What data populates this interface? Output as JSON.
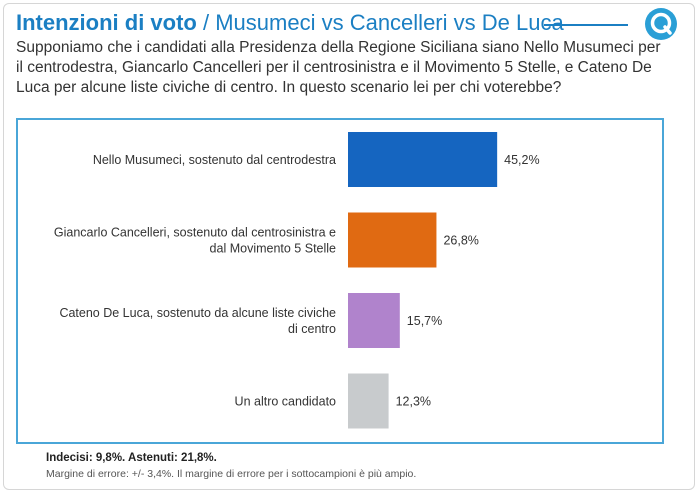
{
  "header": {
    "title_bold": "Intenzioni di voto",
    "title_rest": "/ Musumeci vs Cancelleri vs De Luca",
    "logo_icon": "q-logo-icon",
    "accent_color": "#1b7fc3"
  },
  "question": "Supponiamo che i candidati alla Presidenza della Regione Siciliana siano Nello Musumeci per il centrodestra, Giancarlo Cancelleri per il centrosinistra e il Movimento 5 Stelle, e Cateno De Luca per alcune liste civiche di centro. In questo scenario lei per chi voterebbe?",
  "chart_data": {
    "type": "bar",
    "orientation": "horizontal",
    "categories": [
      [
        "Nello Musumeci, sostenuto dal centrodestra"
      ],
      [
        "Giancarlo Cancelleri, sostenuto dal centrosinistra e",
        "dal Movimento 5 Stelle"
      ],
      [
        "Cateno De Luca, sostenuto da alcune liste civiche",
        "di centro"
      ],
      [
        "Un altro candidato"
      ]
    ],
    "values": [
      45.2,
      26.8,
      15.7,
      12.3
    ],
    "value_labels": [
      "45,2%",
      "26,8%",
      "15,7%",
      "12,3%"
    ],
    "colors": [
      "#1565c0",
      "#e06a12",
      "#b083cc",
      "#c8cbcd"
    ],
    "xlim": [
      0,
      60
    ],
    "grid": false
  },
  "footer": {
    "bold": "Indecisi: 9,8%. Astenuti: 21,8%.",
    "note": "Margine di errore: +/- 3,4%. Il margine di errore per i sottocampioni è più ampio."
  }
}
